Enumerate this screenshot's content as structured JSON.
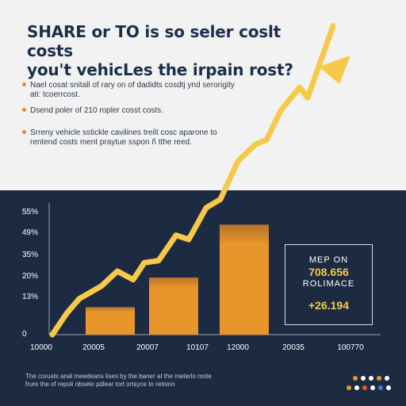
{
  "header": {
    "title_line1": "SHARE or TO is so seler coslt costs",
    "title_line2": "you't vehicLes the irpain rost?",
    "bullets": [
      "Nael cosat snitall of rary on of dadidts cosdtj ynd serorigity ati: tcoerrcost.",
      "Dsend poler of 210 ropler cosst costs.",
      "Srreny vehicle sstickle cavilines treilt cosc aparone to rentend costs ment praytue sspon ñ tthe reed."
    ]
  },
  "info_box": {
    "line1": "MEP ON",
    "line2": "708.656",
    "line3": "ROLIMACE",
    "line4": "+26.194"
  },
  "footer": {
    "note": "The corusts anal meedeans lises by the baner at the meterlo mote frure the of repoli obsete pdlear tort ortsyce to retnion"
  },
  "colors": {
    "accent_yellow": "#f7c948",
    "bar_orange": "#e8962c",
    "panel_navy": "#1d2b42",
    "title_navy": "#1c2f4a"
  },
  "chart_data": {
    "type": "bar",
    "y_ticks": [
      "0",
      "13%",
      "20%",
      "35%",
      "49%",
      "55%"
    ],
    "x_ticks": [
      "10000",
      "20005",
      "20007",
      "10107",
      "12000",
      "20035",
      "100770"
    ],
    "bars": [
      {
        "category": "20005",
        "value": 13
      },
      {
        "category": "20007",
        "value": 27
      },
      {
        "category": "12000",
        "value": 52
      }
    ],
    "trend_line": {
      "type": "line",
      "x": [
        "10000",
        "20005",
        "20007",
        "10107",
        "12000",
        "20035"
      ],
      "y": [
        0,
        17,
        30,
        39,
        52,
        77
      ],
      "arrow": true
    },
    "legend": "none",
    "grid": false
  }
}
